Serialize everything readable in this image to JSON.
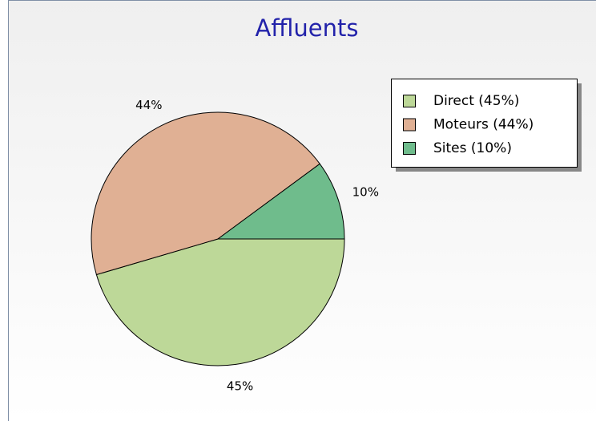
{
  "chart_data": {
    "type": "pie",
    "title": "Affluents",
    "categories": [
      "Direct (45%)",
      "Moteurs (44%)",
      "Sites (10%)"
    ],
    "values": [
      45,
      44,
      10
    ],
    "value_labels": [
      "45%",
      "44%",
      "10%"
    ],
    "colors": [
      "#bdd898",
      "#e0b094",
      "#6fbc8c"
    ],
    "legend": "upper right"
  }
}
